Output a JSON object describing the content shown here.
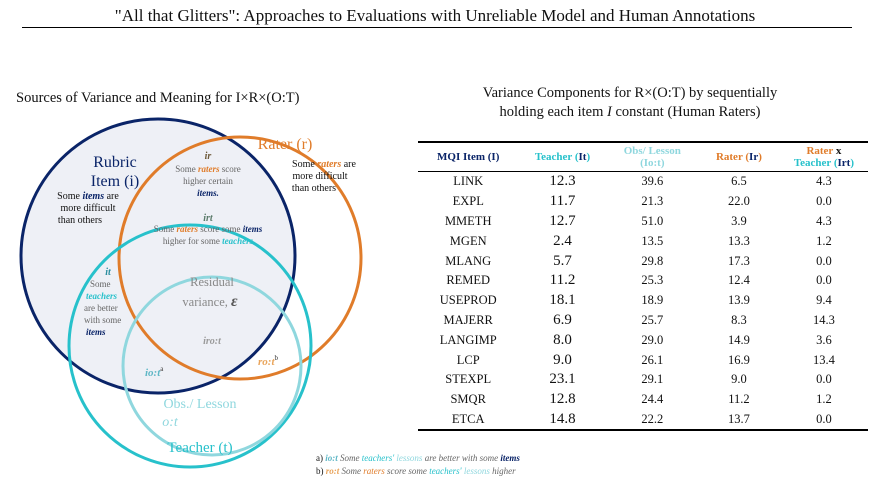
{
  "page_title": "\"All that Glitters\": Approaches to Evaluations with Unreliable Model and Human Annotations",
  "venn": {
    "title": "Sources of Variance and Meaning for I×R×(O:T)",
    "rubric_label_1": "Rubric",
    "rubric_label_2": "Item (i)",
    "rater_label": "Rater (r)",
    "teacher_label": "Teacher (t)",
    "obs_label_1": "Obs./ Lesson",
    "obs_label_2": "o:t",
    "items_text": [
      "Some",
      "items",
      "are",
      "more difficult",
      "than others"
    ],
    "raters_text": [
      "Some",
      "raters",
      "are",
      "more difficult",
      "than others"
    ],
    "ir_label": "ir",
    "ir_text": [
      "Some",
      "raters",
      "score",
      "higher certain",
      "items."
    ],
    "irt_label": "irt",
    "irt_text": [
      "Some",
      "raters",
      "score some",
      "items",
      "higher for some",
      "teachers"
    ],
    "it_label": "it",
    "it_text": [
      "Some",
      "teachers",
      "are better",
      "with some",
      "items"
    ],
    "residual_1": "Residual",
    "residual_2": "variance,",
    "epsilon": "ε",
    "iro_t": "iro:t",
    "io_t": "io:t",
    "ro_t": "ro:t",
    "sup_a": "a",
    "sup_b": "b",
    "colors": {
      "navy": "#0a2468",
      "orange": "#e07c2a",
      "cyan": "#27c1cb",
      "light_cyan": "#8fd7de",
      "fill": "#eef0f6"
    }
  },
  "table": {
    "title_1": "Variance Components for R×(O:T) by sequentially",
    "title_2_pre": "holding each item",
    "title_2_I": "I",
    "title_2_post": "constant (Human Raters)",
    "headers": {
      "item": "MQI Item (I)",
      "teacher": "Teacher (",
      "teacher_sym": "It",
      "obs_1": "Obs/ Lesson",
      "obs_2": "(",
      "obs_sym": "Io:t",
      "rater": "Rater (",
      "rater_sym": "Ir",
      "rxt_1": "Rater",
      "rxt_x": "x",
      "rxt_2": "Teacher (",
      "rxt_sym": "Irt",
      "close": ")"
    },
    "rows": [
      [
        "LINK",
        "12.3",
        "39.6",
        "6.5",
        "4.3"
      ],
      [
        "EXPL",
        "11.7",
        "21.3",
        "22.0",
        "0.0"
      ],
      [
        "MMETH",
        "12.7",
        "51.0",
        "3.9",
        "4.3"
      ],
      [
        "MGEN",
        "2.4",
        "13.5",
        "13.3",
        "1.2"
      ],
      [
        "MLANG",
        "5.7",
        "29.8",
        "17.3",
        "0.0"
      ],
      [
        "REMED",
        "11.2",
        "25.3",
        "12.4",
        "0.0"
      ],
      [
        "USEPROD",
        "18.1",
        "18.9",
        "13.9",
        "9.4"
      ],
      [
        "MAJERR",
        "6.9",
        "25.7",
        "8.3",
        "14.3"
      ],
      [
        "LANGIMP",
        "8.0",
        "29.0",
        "14.9",
        "3.6"
      ],
      [
        "LCP",
        "9.0",
        "26.1",
        "16.9",
        "13.4"
      ],
      [
        "STEXPL",
        "23.1",
        "29.1",
        "9.0",
        "0.0"
      ],
      [
        "SMQR",
        "12.8",
        "24.4",
        "11.2",
        "1.2"
      ],
      [
        "ETCA",
        "14.8",
        "22.2",
        "13.7",
        "0.0"
      ]
    ]
  },
  "footnotes": {
    "a_prefix": "a)",
    "a_sym": "io:t",
    "a_1": "Some",
    "a_teachers": "teachers'",
    "a_lessons": "lessons",
    "a_2": "are better with some",
    "a_items": "items",
    "b_prefix": "b)",
    "b_sym": "ro:t",
    "b_1": "Some",
    "b_raters": "raters",
    "b_2": "score some",
    "b_teachers": "teachers'",
    "b_lessons": "lessons",
    "b_3": "higher"
  }
}
